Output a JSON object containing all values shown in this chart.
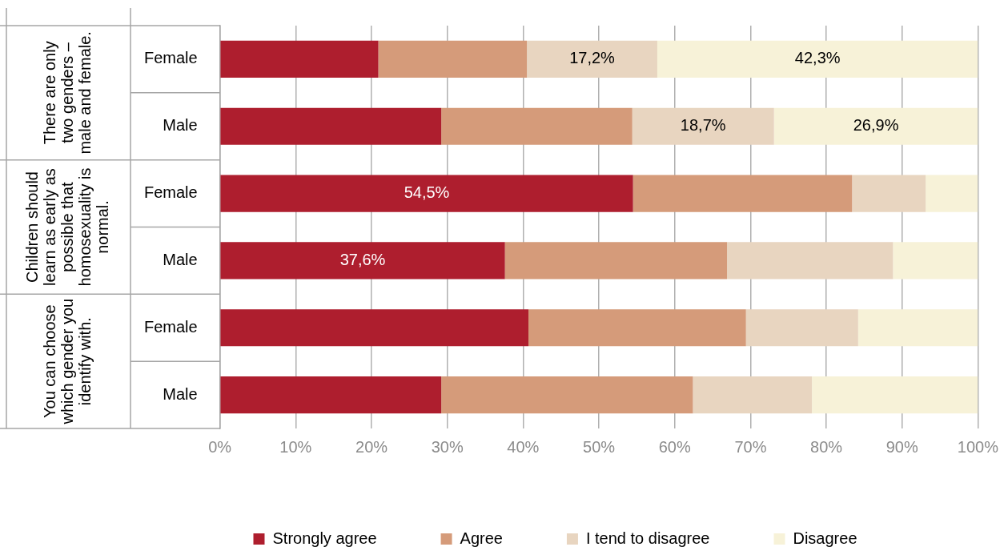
{
  "chart_data": {
    "type": "bar",
    "orientation": "horizontal",
    "stacked": true,
    "categories": [
      "Female",
      "Male",
      "Female",
      "Male",
      "Female",
      "Male"
    ],
    "series": [
      {
        "name": "Strongly agree",
        "color": "#ae1e2e",
        "values": [
          20.9,
          29.2,
          54.5,
          37.6,
          40.7,
          29.2
        ],
        "value_labels": [
          null,
          null,
          "54,5%",
          "37,6%",
          null,
          null
        ]
      },
      {
        "name": "Agree",
        "color": "#d59b7a",
        "values": [
          19.6,
          25.2,
          28.9,
          29.3,
          28.7,
          33.2
        ]
      },
      {
        "name": "I tend to disagree",
        "color": "#e8d5c0",
        "values": [
          17.2,
          18.7,
          9.7,
          21.9,
          14.8,
          15.7
        ],
        "value_labels": [
          "17,2%",
          "18,7%",
          null,
          null,
          null,
          null
        ]
      },
      {
        "name": "Disagree",
        "color": "#f7f2d8",
        "values": [
          42.3,
          26.9,
          6.9,
          11.2,
          15.8,
          21.9
        ],
        "value_labels": [
          "42,3%",
          "26,9%",
          null,
          null,
          null,
          null
        ]
      }
    ],
    "xlim": [
      0,
      100
    ],
    "xticks": [
      {
        "value": 0,
        "label": "0%"
      },
      {
        "value": 10,
        "label": "10%"
      },
      {
        "value": 20,
        "label": "20%"
      },
      {
        "value": 30,
        "label": "30%"
      },
      {
        "value": 40,
        "label": "40%"
      },
      {
        "value": 50,
        "label": "50%"
      },
      {
        "value": 60,
        "label": "60%"
      },
      {
        "value": 70,
        "label": "70%"
      },
      {
        "value": 80,
        "label": "80%"
      },
      {
        "value": 90,
        "label": "90%"
      },
      {
        "value": 100,
        "label": "100%"
      }
    ],
    "grid": "x",
    "legend": "bottom",
    "annotations": [
      "There are only two genders – male and female.",
      "Children should learn as early as possible that homosexuality is normal.",
      "You can choose which gender you identify with."
    ]
  }
}
